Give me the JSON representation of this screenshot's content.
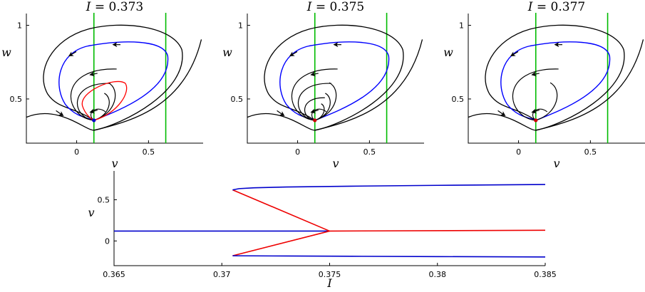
{
  "chart_data": [
    {
      "type": "line",
      "panel": "phase-plane-1",
      "title": "I = 0.373",
      "title_var": "I",
      "title_value": "= 0.373",
      "xlabel": "v",
      "ylabel": "w",
      "xlim": [
        -0.35,
        0.88
      ],
      "ylim": [
        0.2,
        1.08
      ],
      "xticks": [
        0,
        0.5
      ],
      "xtick_labels": [
        "0",
        "0.5"
      ],
      "yticks": [
        0.5,
        1
      ],
      "ytick_labels": [
        "0.5",
        "1"
      ],
      "nullclines_v": [
        0.12,
        0.62
      ],
      "equilibrium": {
        "v": 0.12,
        "w": 0.355,
        "color": "#0000cc"
      },
      "outer_orbit_scale": 1.0,
      "inner_orbit_count": 2,
      "red_cycle": true,
      "colors": {
        "nullcline": "#00bb00",
        "limit_cycle": "#0000ff",
        "unstable_cycle": "#ff0000",
        "trajectory": "#000000"
      }
    },
    {
      "type": "line",
      "panel": "phase-plane-2",
      "title": "I = 0.375",
      "title_var": "I",
      "title_value": "= 0.375",
      "xlabel": "v",
      "ylabel": "w",
      "xlim": [
        -0.35,
        0.88
      ],
      "ylim": [
        0.2,
        1.08
      ],
      "xticks": [
        0,
        0.5
      ],
      "xtick_labels": [
        "0",
        "0.5"
      ],
      "yticks": [
        0.5,
        1
      ],
      "ytick_labels": [
        "0.5",
        "1"
      ],
      "nullclines_v": [
        0.12,
        0.62
      ],
      "equilibrium": {
        "v": 0.12,
        "w": 0.355,
        "color": "#cc0000"
      },
      "outer_orbit_scale": 1.0,
      "inner_orbit_count": 3,
      "red_cycle": false,
      "colors": {
        "nullcline": "#00bb00",
        "limit_cycle": "#0000ff",
        "trajectory": "#000000"
      }
    },
    {
      "type": "line",
      "panel": "phase-plane-3",
      "title": "I = 0.377",
      "title_var": "I",
      "title_value": "= 0.377",
      "xlabel": "v",
      "ylabel": "w",
      "xlim": [
        -0.35,
        0.88
      ],
      "ylim": [
        0.2,
        1.08
      ],
      "xticks": [
        0,
        0.5
      ],
      "xtick_labels": [
        "0",
        "0.5"
      ],
      "yticks": [
        0.5,
        1
      ],
      "ytick_labels": [
        "0.5",
        "1"
      ],
      "nullclines_v": [
        0.12,
        0.62
      ],
      "equilibrium": {
        "v": 0.12,
        "w": 0.355,
        "color": "#cc0000"
      },
      "outer_orbit_scale": 1.0,
      "inner_orbit_count": 1,
      "red_cycle": false,
      "colors": {
        "nullcline": "#00bb00",
        "limit_cycle": "#0000ff",
        "trajectory": "#000000"
      }
    },
    {
      "type": "line",
      "panel": "bifurcation-diagram",
      "title": "",
      "xlabel": "I",
      "ylabel": "v",
      "xlim": [
        0.365,
        0.385
      ],
      "ylim": [
        -0.3,
        0.85
      ],
      "xticks": [
        0.365,
        0.37,
        0.375,
        0.38,
        0.385
      ],
      "xtick_labels": [
        "0.365",
        "0.37",
        "0.375",
        "0.38",
        "0.385"
      ],
      "yticks": [
        0,
        0.5
      ],
      "ytick_labels": [
        "0",
        "0.5"
      ],
      "series": [
        {
          "role": "stable-equilibrium",
          "color": "#0000cc",
          "points": [
            [
              0.365,
              0.12
            ],
            [
              0.375,
              0.12
            ]
          ]
        },
        {
          "role": "unstable-equilibrium",
          "color": "#ee0000",
          "points": [
            [
              0.375,
              0.12
            ],
            [
              0.385,
              0.13
            ]
          ]
        },
        {
          "role": "unstable-cycle-max",
          "color": "#ee0000",
          "points": [
            [
              0.3705,
              0.62
            ],
            [
              0.375,
              0.12
            ]
          ]
        },
        {
          "role": "unstable-cycle-min",
          "color": "#ee0000",
          "points": [
            [
              0.3705,
              -0.18
            ],
            [
              0.375,
              0.12
            ]
          ]
        },
        {
          "role": "stable-cycle-max",
          "color": "#0000cc",
          "points": [
            [
              0.3705,
              0.62
            ],
            [
              0.3708,
              0.635
            ],
            [
              0.3715,
              0.645
            ],
            [
              0.373,
              0.655
            ],
            [
              0.376,
              0.665
            ],
            [
              0.38,
              0.675
            ],
            [
              0.385,
              0.685
            ]
          ]
        },
        {
          "role": "stable-cycle-min",
          "color": "#0000cc",
          "points": [
            [
              0.3705,
              -0.18
            ],
            [
              0.373,
              -0.183
            ],
            [
              0.376,
              -0.186
            ],
            [
              0.38,
              -0.19
            ],
            [
              0.385,
              -0.195
            ]
          ]
        }
      ]
    }
  ]
}
